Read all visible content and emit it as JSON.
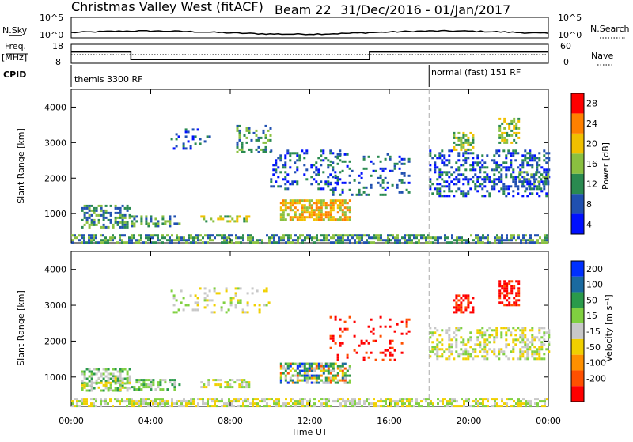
{
  "header": {
    "station": "Christmas Valley West (fitACF)",
    "beam": "Beam 22",
    "date_range": "31/Dec/2016 - 01/Jan/2017"
  },
  "noise_panel": {
    "left_label": "N.Sky",
    "left_ticks": [
      "10^5",
      "10^0"
    ],
    "right_label": "N.Search",
    "right_ticks": [
      "10^5",
      "10^0"
    ]
  },
  "freq_panel": {
    "left_label_1": "Freq.",
    "left_label_2": "[MHz]",
    "left_ticks": [
      "18",
      "8"
    ],
    "right_label": "Nave",
    "right_ticks": [
      "60",
      "0"
    ]
  },
  "cpid_panel": {
    "label": "CPID",
    "mode_1": "themis 3300 RF",
    "mode_2": "normal (fast) 151 RF"
  },
  "time_axis": {
    "label": "Time UT",
    "ticks": [
      "00:00",
      "04:00",
      "08:00",
      "12:00",
      "16:00",
      "20:00",
      "00:00"
    ]
  },
  "power_panel": {
    "ylabel": "Slant Range [km]",
    "yticks": [
      "1000",
      "2000",
      "3000",
      "4000"
    ],
    "colorbar_label": "Power [dB]",
    "colorbar_ticks": [
      "4",
      "8",
      "12",
      "16",
      "20",
      "24",
      "28"
    ],
    "colors": [
      "#0010ff",
      "#2050b0",
      "#2a8a50",
      "#8ac040",
      "#f0c000",
      "#ff8000",
      "#ff0000"
    ]
  },
  "velocity_panel": {
    "ylabel": "Slant Range [km]",
    "yticks": [
      "1000",
      "2000",
      "3000",
      "4000"
    ],
    "colorbar_label": "Velocity [m s⁻¹]",
    "colorbar_ticks": [
      "200",
      "100",
      "50",
      "15",
      "-15",
      "-50",
      "-100",
      "-200"
    ],
    "colors": [
      "#0030ff",
      "#1a6aa0",
      "#2a9a4a",
      "#80d040",
      "#c8c8c8",
      "#f0d000",
      "#ff9000",
      "#ff5000",
      "#ff0000"
    ]
  },
  "chart_data": {
    "type": "heatmap",
    "x_range_hours": [
      0,
      24
    ],
    "x_ticks": [
      "00:00",
      "04:00",
      "08:00",
      "12:00",
      "16:00",
      "20:00",
      "00:00"
    ],
    "y_range_km": [
      180,
      4500
    ],
    "mode_switch_hour": 18.0,
    "freq_mhz": {
      "segments": [
        {
          "start": 0,
          "end": 3,
          "value": 14
        },
        {
          "start": 3,
          "end": 15,
          "value": 10
        },
        {
          "start": 15,
          "end": 24,
          "value": 14
        }
      ]
    },
    "power_regions": [
      {
        "t0": 0.5,
        "t1": 3.0,
        "r0": 620,
        "r1": 1250,
        "level": 2,
        "density": 0.55
      },
      {
        "t0": 3.0,
        "t1": 5.5,
        "r0": 650,
        "r1": 950,
        "level": 2,
        "density": 0.4
      },
      {
        "t0": 6.5,
        "t1": 9.0,
        "r0": 750,
        "r1": 950,
        "level": 3,
        "density": 0.5
      },
      {
        "t0": 5.0,
        "t1": 7.0,
        "r0": 2800,
        "r1": 3400,
        "level": 1,
        "density": 0.15
      },
      {
        "t0": 8.3,
        "t1": 10.0,
        "r0": 2700,
        "r1": 3500,
        "level": 2,
        "density": 0.35
      },
      {
        "t0": 10.0,
        "t1": 13.5,
        "r0": 1700,
        "r1": 2800,
        "level": 1,
        "density": 0.25
      },
      {
        "t0": 10.5,
        "t1": 14.0,
        "r0": 850,
        "r1": 1400,
        "level": 4,
        "density": 0.7
      },
      {
        "t0": 13.0,
        "t1": 17.0,
        "r0": 1500,
        "r1": 2700,
        "level": 1,
        "density": 0.2
      },
      {
        "t0": 18.0,
        "t1": 24.0,
        "r0": 1500,
        "r1": 2800,
        "level": 1,
        "density": 0.35
      },
      {
        "t0": 19.2,
        "t1": 20.2,
        "r0": 2800,
        "r1": 3300,
        "level": 3,
        "density": 0.5
      },
      {
        "t0": 21.5,
        "t1": 22.5,
        "r0": 3000,
        "r1": 3700,
        "level": 3,
        "density": 0.55
      },
      {
        "t0": 22.5,
        "t1": 24.0,
        "r0": 1700,
        "r1": 2200,
        "level": 2,
        "density": 0.45
      },
      {
        "t0": 0.0,
        "t1": 24.0,
        "r0": 180,
        "r1": 420,
        "level": 2,
        "density": 0.6
      }
    ],
    "velocity_regions": [
      {
        "t0": 0.5,
        "t1": 3.0,
        "r0": 620,
        "r1": 1250,
        "level": 3,
        "density": 0.5
      },
      {
        "t0": 0.5,
        "t1": 3.0,
        "r0": 620,
        "r1": 1000,
        "level": 4,
        "density": 0.3
      },
      {
        "t0": 3.0,
        "t1": 5.5,
        "r0": 650,
        "r1": 950,
        "level": 3,
        "density": 0.4
      },
      {
        "t0": 6.5,
        "t1": 9.0,
        "r0": 750,
        "r1": 950,
        "level": 4,
        "density": 0.5
      },
      {
        "t0": 5.0,
        "t1": 10.0,
        "r0": 2800,
        "r1": 3500,
        "level": 4,
        "density": 0.2
      },
      {
        "t0": 10.5,
        "t1": 14.0,
        "r0": 850,
        "r1": 1400,
        "level": 6,
        "density": 0.4
      },
      {
        "t0": 10.5,
        "t1": 14.0,
        "r0": 850,
        "r1": 1400,
        "level": 1,
        "density": 0.25
      },
      {
        "t0": 10.5,
        "t1": 14.0,
        "r0": 850,
        "r1": 1400,
        "level": 3,
        "density": 0.3
      },
      {
        "t0": 13.0,
        "t1": 17.0,
        "r0": 1500,
        "r1": 2700,
        "level": 8,
        "density": 0.12
      },
      {
        "t0": 18.0,
        "t1": 24.0,
        "r0": 1500,
        "r1": 2400,
        "level": 4,
        "density": 0.4
      },
      {
        "t0": 19.2,
        "t1": 20.2,
        "r0": 2800,
        "r1": 3300,
        "level": 8,
        "density": 0.55
      },
      {
        "t0": 21.5,
        "t1": 22.5,
        "r0": 3000,
        "r1": 3700,
        "level": 8,
        "density": 0.6
      },
      {
        "t0": 0.0,
        "t1": 24.0,
        "r0": 180,
        "r1": 420,
        "level": 4,
        "density": 0.6
      }
    ]
  }
}
